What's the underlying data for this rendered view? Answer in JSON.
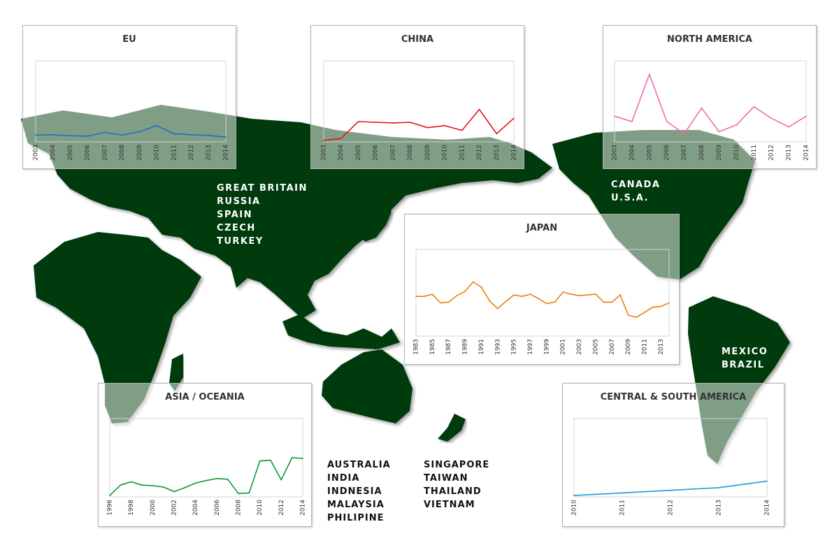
{
  "regions": {
    "europe_countries": [
      "GREAT BRITAIN",
      "RUSSIA",
      "SPAIN",
      "CZECH",
      "TURKEY"
    ],
    "north_america_countries": [
      "CANADA",
      "U.S.A."
    ],
    "latin_america_countries": [
      "MEXICO",
      "BRAZIL"
    ],
    "asia_oceania_countries_1": [
      "AUSTRALIA",
      "INDIA",
      "INDNESIA",
      "MALAYSIA",
      "PHILIPINE"
    ],
    "asia_oceania_countries_2": [
      "SINGAPORE",
      "TAIWAN",
      "THAILAND",
      "VIETNAM"
    ]
  },
  "chart_data": [
    {
      "id": "eu",
      "type": "line",
      "title": "EU",
      "color": "#1f6fc5",
      "x": [
        "2003",
        "2004",
        "2005",
        "2006",
        "2007",
        "2008",
        "2009",
        "2010",
        "2011",
        "2012",
        "2013",
        "2014"
      ],
      "values": [
        10.0,
        10.5,
        9.0,
        8.5,
        14.0,
        10.0,
        15.0,
        24.0,
        12.0,
        10.5,
        9.5,
        7.0
      ],
      "ylim": [
        0,
        120
      ],
      "xlabel": "",
      "ylabel": "",
      "grid": false,
      "legend": false
    },
    {
      "id": "china",
      "type": "line",
      "title": "CHINA",
      "color": "#e21717",
      "x": [
        "2003",
        "2004",
        "2005",
        "2006",
        "2007",
        "2008",
        "2009",
        "2010",
        "2011",
        "2012",
        "2013",
        "2014"
      ],
      "values": [
        2,
        5,
        30,
        29,
        28,
        29,
        21,
        24,
        17,
        48,
        12,
        35
      ],
      "ylim": [
        0,
        120
      ],
      "xlabel": "",
      "ylabel": "",
      "grid": false,
      "legend": false
    },
    {
      "id": "north-america",
      "type": "line",
      "title": "NORTH AMERICA",
      "color": "#f06ab2",
      "x": [
        "2003",
        "2004",
        "2005",
        "2006",
        "2007",
        "2008",
        "2009",
        "2010",
        "2011",
        "2012",
        "2013",
        "2014"
      ],
      "values": [
        38,
        30,
        100,
        30,
        12,
        50,
        15,
        25,
        52,
        35,
        22,
        38
      ],
      "ylim": [
        0,
        120
      ],
      "xlabel": "",
      "ylabel": "",
      "grid": false,
      "legend": false
    },
    {
      "id": "japan",
      "type": "line",
      "title": "JAPAN",
      "color": "#f07d0a",
      "x": [
        "1983",
        "1984",
        "1985",
        "1986",
        "1987",
        "1988",
        "1989",
        "1990",
        "1991",
        "1992",
        "1993",
        "1994",
        "1995",
        "1996",
        "1997",
        "1998",
        "1999",
        "2000",
        "2001",
        "2002",
        "2003",
        "2004",
        "2005",
        "2006",
        "2007",
        "2008",
        "2009",
        "2010",
        "2011",
        "2012",
        "2013",
        "2014"
      ],
      "x_tick_labels": [
        "1983",
        "1985",
        "1987",
        "1989",
        "1991",
        "1993",
        "1995",
        "1997",
        "1999",
        "2001",
        "2003",
        "2005",
        "2007",
        "2009",
        "2011",
        "2013"
      ],
      "values": [
        55,
        55,
        58,
        46,
        47,
        56,
        62,
        75,
        68,
        49,
        38,
        48,
        57,
        55,
        58,
        52,
        45,
        47,
        61,
        58,
        56,
        57,
        58,
        47,
        47,
        57,
        29,
        26,
        33,
        40,
        41,
        46
      ],
      "ylim": [
        0,
        120
      ],
      "xlabel": "",
      "ylabel": "",
      "grid": false,
      "legend": false
    },
    {
      "id": "asia-oceania",
      "type": "line",
      "title": "ASIA / OCEANIA",
      "color": "#0a9a36",
      "x": [
        "1996",
        "1997",
        "1998",
        "1999",
        "2000",
        "2001",
        "2002",
        "2003",
        "2004",
        "2005",
        "2006",
        "2007",
        "2008",
        "2009",
        "2010",
        "2011",
        "2012",
        "2013",
        "2014"
      ],
      "x_tick_labels": [
        "1996",
        "1998",
        "2000",
        "2002",
        "2004",
        "2006",
        "2008",
        "2010",
        "2012",
        "2014"
      ],
      "values": [
        2,
        18,
        23,
        18,
        17,
        15,
        8,
        14,
        21,
        25,
        28,
        27,
        5,
        6,
        55,
        56,
        26,
        60,
        59
      ],
      "ylim": [
        0,
        120
      ],
      "xlabel": "",
      "ylabel": "",
      "grid": false,
      "legend": false
    },
    {
      "id": "central-south-america",
      "type": "line",
      "title": "CENTRAL & SOUTH AMERICA",
      "color": "#1a9bd7",
      "x": [
        "2010",
        "2011",
        "2012",
        "2013",
        "2014"
      ],
      "values": [
        2,
        6,
        10,
        14,
        24
      ],
      "ylim": [
        0,
        120
      ],
      "xlabel": "",
      "ylabel": "",
      "grid": false,
      "legend": false
    }
  ]
}
